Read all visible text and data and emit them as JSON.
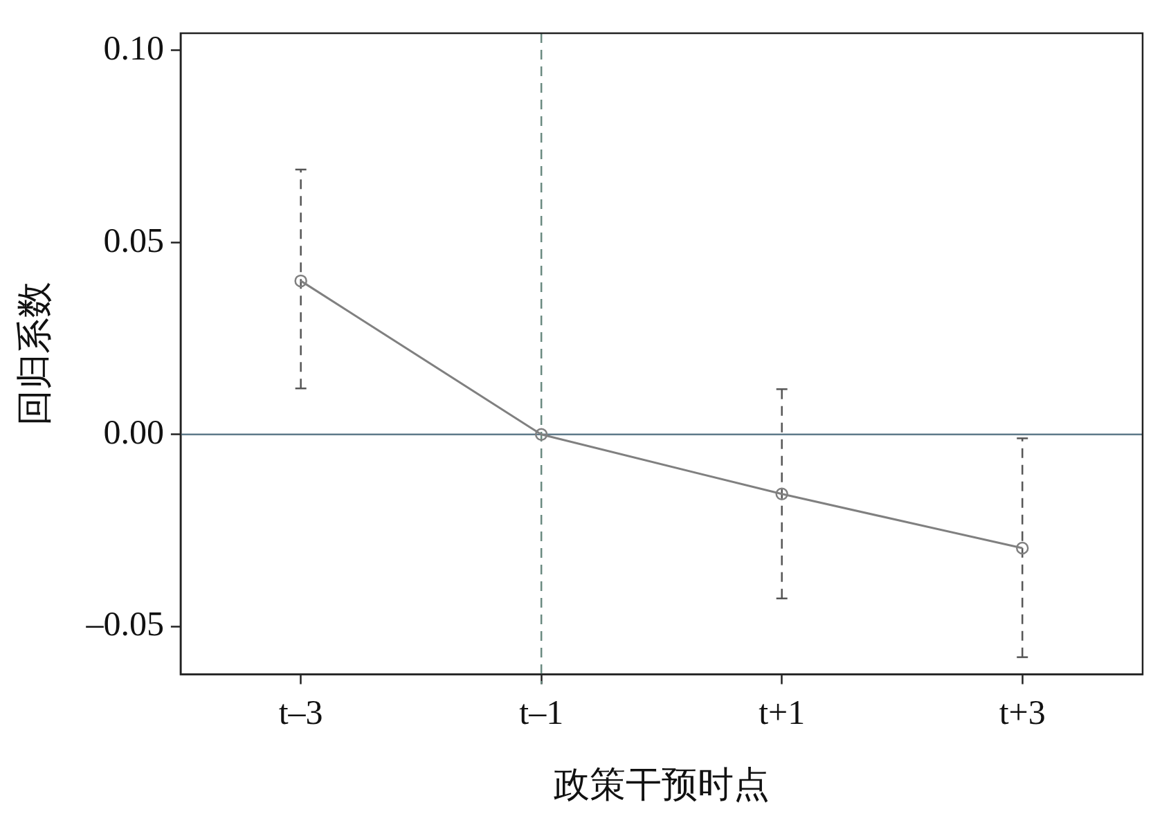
{
  "chart_data": {
    "type": "line",
    "xlabel": "政策干预时点",
    "ylabel": "回归系数",
    "categories": [
      "t–3",
      "t–1",
      "t+1",
      "t+3"
    ],
    "series": [
      {
        "color": "#808080",
        "values": [
          0.04,
          0,
          -0.0155,
          -0.0296
        ],
        "errors": [
          [
            0.012,
            0.069
          ],
          null,
          [
            -0.0427,
            0.0118
          ],
          [
            -0.058,
            -0.001
          ]
        ]
      }
    ],
    "ylim": [
      -0.0625,
      0.1045
    ],
    "yticks": [
      {
        "value": -0.05,
        "label": "–0.05"
      },
      {
        "value": 0,
        "label": "0.00"
      },
      {
        "value": 0.05,
        "label": "0.05"
      },
      {
        "value": 0.1,
        "label": "0.10"
      }
    ],
    "ref_lines": [
      {
        "axis": "y",
        "value": 0,
        "color": "#5f7a8a",
        "line_style": "solid"
      },
      {
        "axis": "x",
        "value": "t–1",
        "color": "#6a8a80",
        "line_style": "dashed"
      }
    ],
    "marker": "circle",
    "grid": false,
    "legend": false
  }
}
